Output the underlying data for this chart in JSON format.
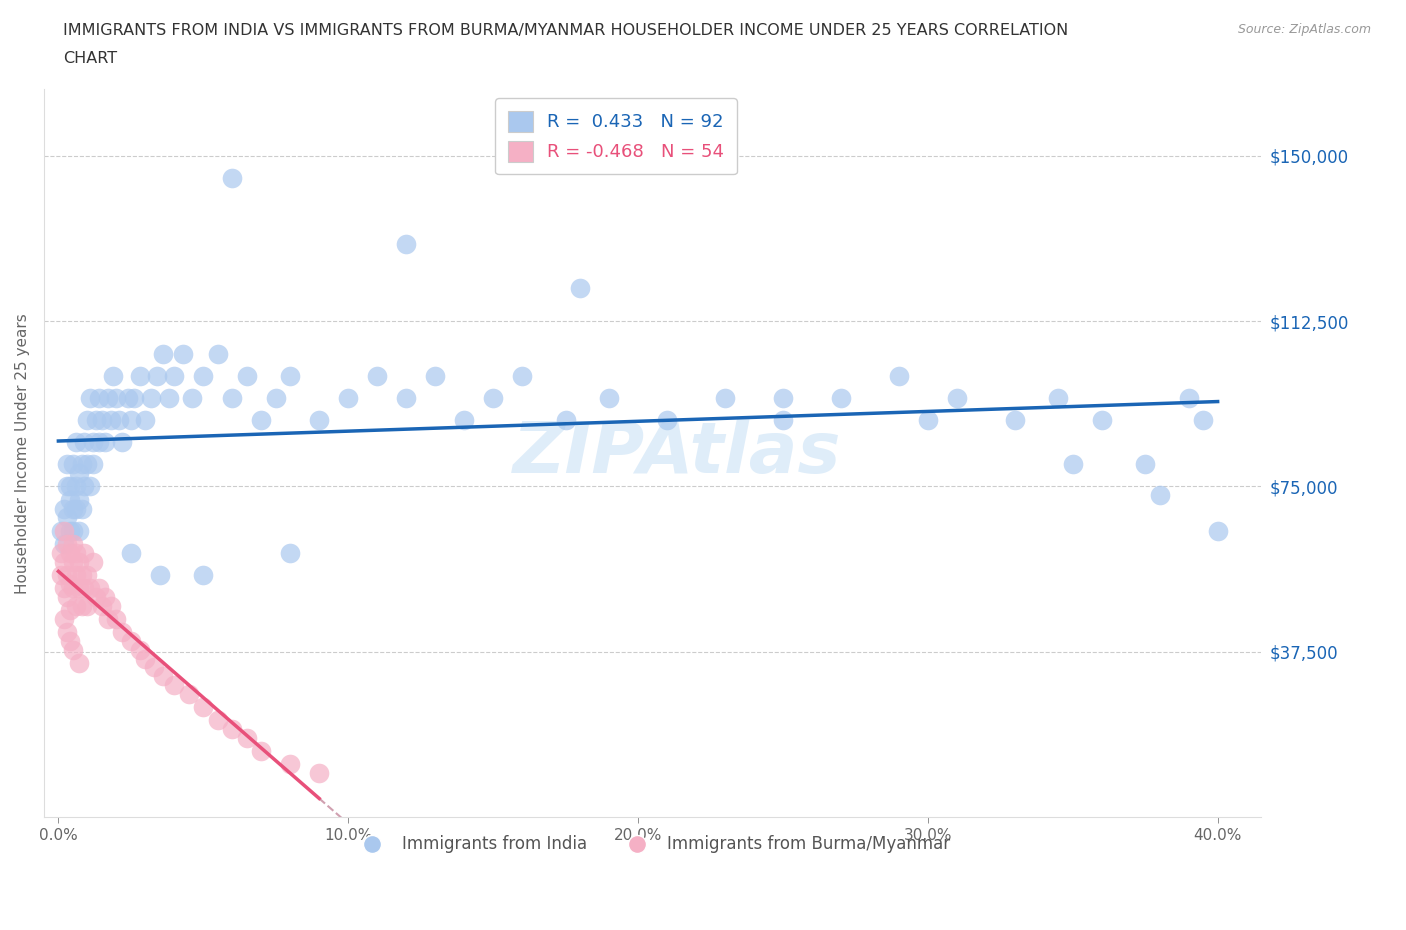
{
  "title_line1": "IMMIGRANTS FROM INDIA VS IMMIGRANTS FROM BURMA/MYANMAR HOUSEHOLDER INCOME UNDER 25 YEARS CORRELATION",
  "title_line2": "CHART",
  "source": "Source: ZipAtlas.com",
  "ylabel": "Householder Income Under 25 years",
  "xlabel_ticks": [
    "0.0%",
    "10.0%",
    "20.0%",
    "30.0%",
    "40.0%"
  ],
  "xlabel_vals": [
    0.0,
    0.1,
    0.2,
    0.3,
    0.4
  ],
  "ytick_labels": [
    "$37,500",
    "$75,000",
    "$112,500",
    "$150,000"
  ],
  "ytick_vals": [
    37500,
    75000,
    112500,
    150000
  ],
  "ylim": [
    0,
    165000
  ],
  "xlim": [
    -0.005,
    0.415
  ],
  "R_india": 0.433,
  "N_india": 92,
  "R_burma": -0.468,
  "N_burma": 54,
  "india_color": "#aac8ee",
  "india_line_color": "#1a65b5",
  "burma_color": "#f5b0c5",
  "burma_line_color": "#e8507a",
  "burma_dash_color": "#d0a0b0",
  "watermark": "ZIPAtlas",
  "legend_india": "Immigrants from India",
  "legend_burma": "Immigrants from Burma/Myanmar",
  "grid_color": "#cccccc",
  "top_grid_style": "dashed",
  "india_x": [
    0.001,
    0.002,
    0.002,
    0.003,
    0.003,
    0.003,
    0.004,
    0.004,
    0.004,
    0.005,
    0.005,
    0.005,
    0.006,
    0.006,
    0.006,
    0.007,
    0.007,
    0.007,
    0.008,
    0.008,
    0.009,
    0.009,
    0.01,
    0.01,
    0.011,
    0.011,
    0.012,
    0.012,
    0.013,
    0.014,
    0.014,
    0.015,
    0.016,
    0.017,
    0.018,
    0.019,
    0.02,
    0.021,
    0.022,
    0.024,
    0.025,
    0.026,
    0.028,
    0.03,
    0.032,
    0.034,
    0.036,
    0.038,
    0.04,
    0.043,
    0.046,
    0.05,
    0.055,
    0.06,
    0.065,
    0.07,
    0.075,
    0.08,
    0.09,
    0.1,
    0.11,
    0.12,
    0.13,
    0.14,
    0.15,
    0.16,
    0.175,
    0.19,
    0.21,
    0.23,
    0.25,
    0.27,
    0.29,
    0.31,
    0.33,
    0.345,
    0.36,
    0.375,
    0.39,
    0.395,
    0.06,
    0.12,
    0.18,
    0.25,
    0.3,
    0.35,
    0.38,
    0.4,
    0.05,
    0.08,
    0.025,
    0.035
  ],
  "india_y": [
    65000,
    62000,
    70000,
    75000,
    68000,
    80000,
    72000,
    65000,
    75000,
    70000,
    80000,
    65000,
    75000,
    70000,
    85000,
    72000,
    78000,
    65000,
    80000,
    70000,
    75000,
    85000,
    90000,
    80000,
    75000,
    95000,
    85000,
    80000,
    90000,
    85000,
    95000,
    90000,
    85000,
    95000,
    90000,
    100000,
    95000,
    90000,
    85000,
    95000,
    90000,
    95000,
    100000,
    90000,
    95000,
    100000,
    105000,
    95000,
    100000,
    105000,
    95000,
    100000,
    105000,
    95000,
    100000,
    90000,
    95000,
    100000,
    90000,
    95000,
    100000,
    95000,
    100000,
    90000,
    95000,
    100000,
    90000,
    95000,
    90000,
    95000,
    90000,
    95000,
    100000,
    95000,
    90000,
    95000,
    90000,
    80000,
    95000,
    90000,
    145000,
    130000,
    120000,
    95000,
    90000,
    80000,
    73000,
    65000,
    55000,
    60000,
    60000,
    55000
  ],
  "burma_x": [
    0.001,
    0.001,
    0.002,
    0.002,
    0.002,
    0.003,
    0.003,
    0.003,
    0.004,
    0.004,
    0.004,
    0.005,
    0.005,
    0.005,
    0.006,
    0.006,
    0.006,
    0.007,
    0.007,
    0.008,
    0.008,
    0.009,
    0.009,
    0.01,
    0.01,
    0.011,
    0.012,
    0.013,
    0.014,
    0.015,
    0.016,
    0.017,
    0.018,
    0.02,
    0.022,
    0.025,
    0.028,
    0.03,
    0.033,
    0.036,
    0.04,
    0.045,
    0.05,
    0.055,
    0.06,
    0.065,
    0.07,
    0.08,
    0.09,
    0.002,
    0.003,
    0.004,
    0.005,
    0.007
  ],
  "burma_y": [
    60000,
    55000,
    65000,
    58000,
    52000,
    62000,
    55000,
    50000,
    60000,
    53000,
    47000,
    58000,
    52000,
    62000,
    55000,
    48000,
    60000,
    52000,
    58000,
    55000,
    48000,
    52000,
    60000,
    55000,
    48000,
    52000,
    58000,
    50000,
    52000,
    48000,
    50000,
    45000,
    48000,
    45000,
    42000,
    40000,
    38000,
    36000,
    34000,
    32000,
    30000,
    28000,
    25000,
    22000,
    20000,
    18000,
    15000,
    12000,
    10000,
    45000,
    42000,
    40000,
    38000,
    35000
  ]
}
